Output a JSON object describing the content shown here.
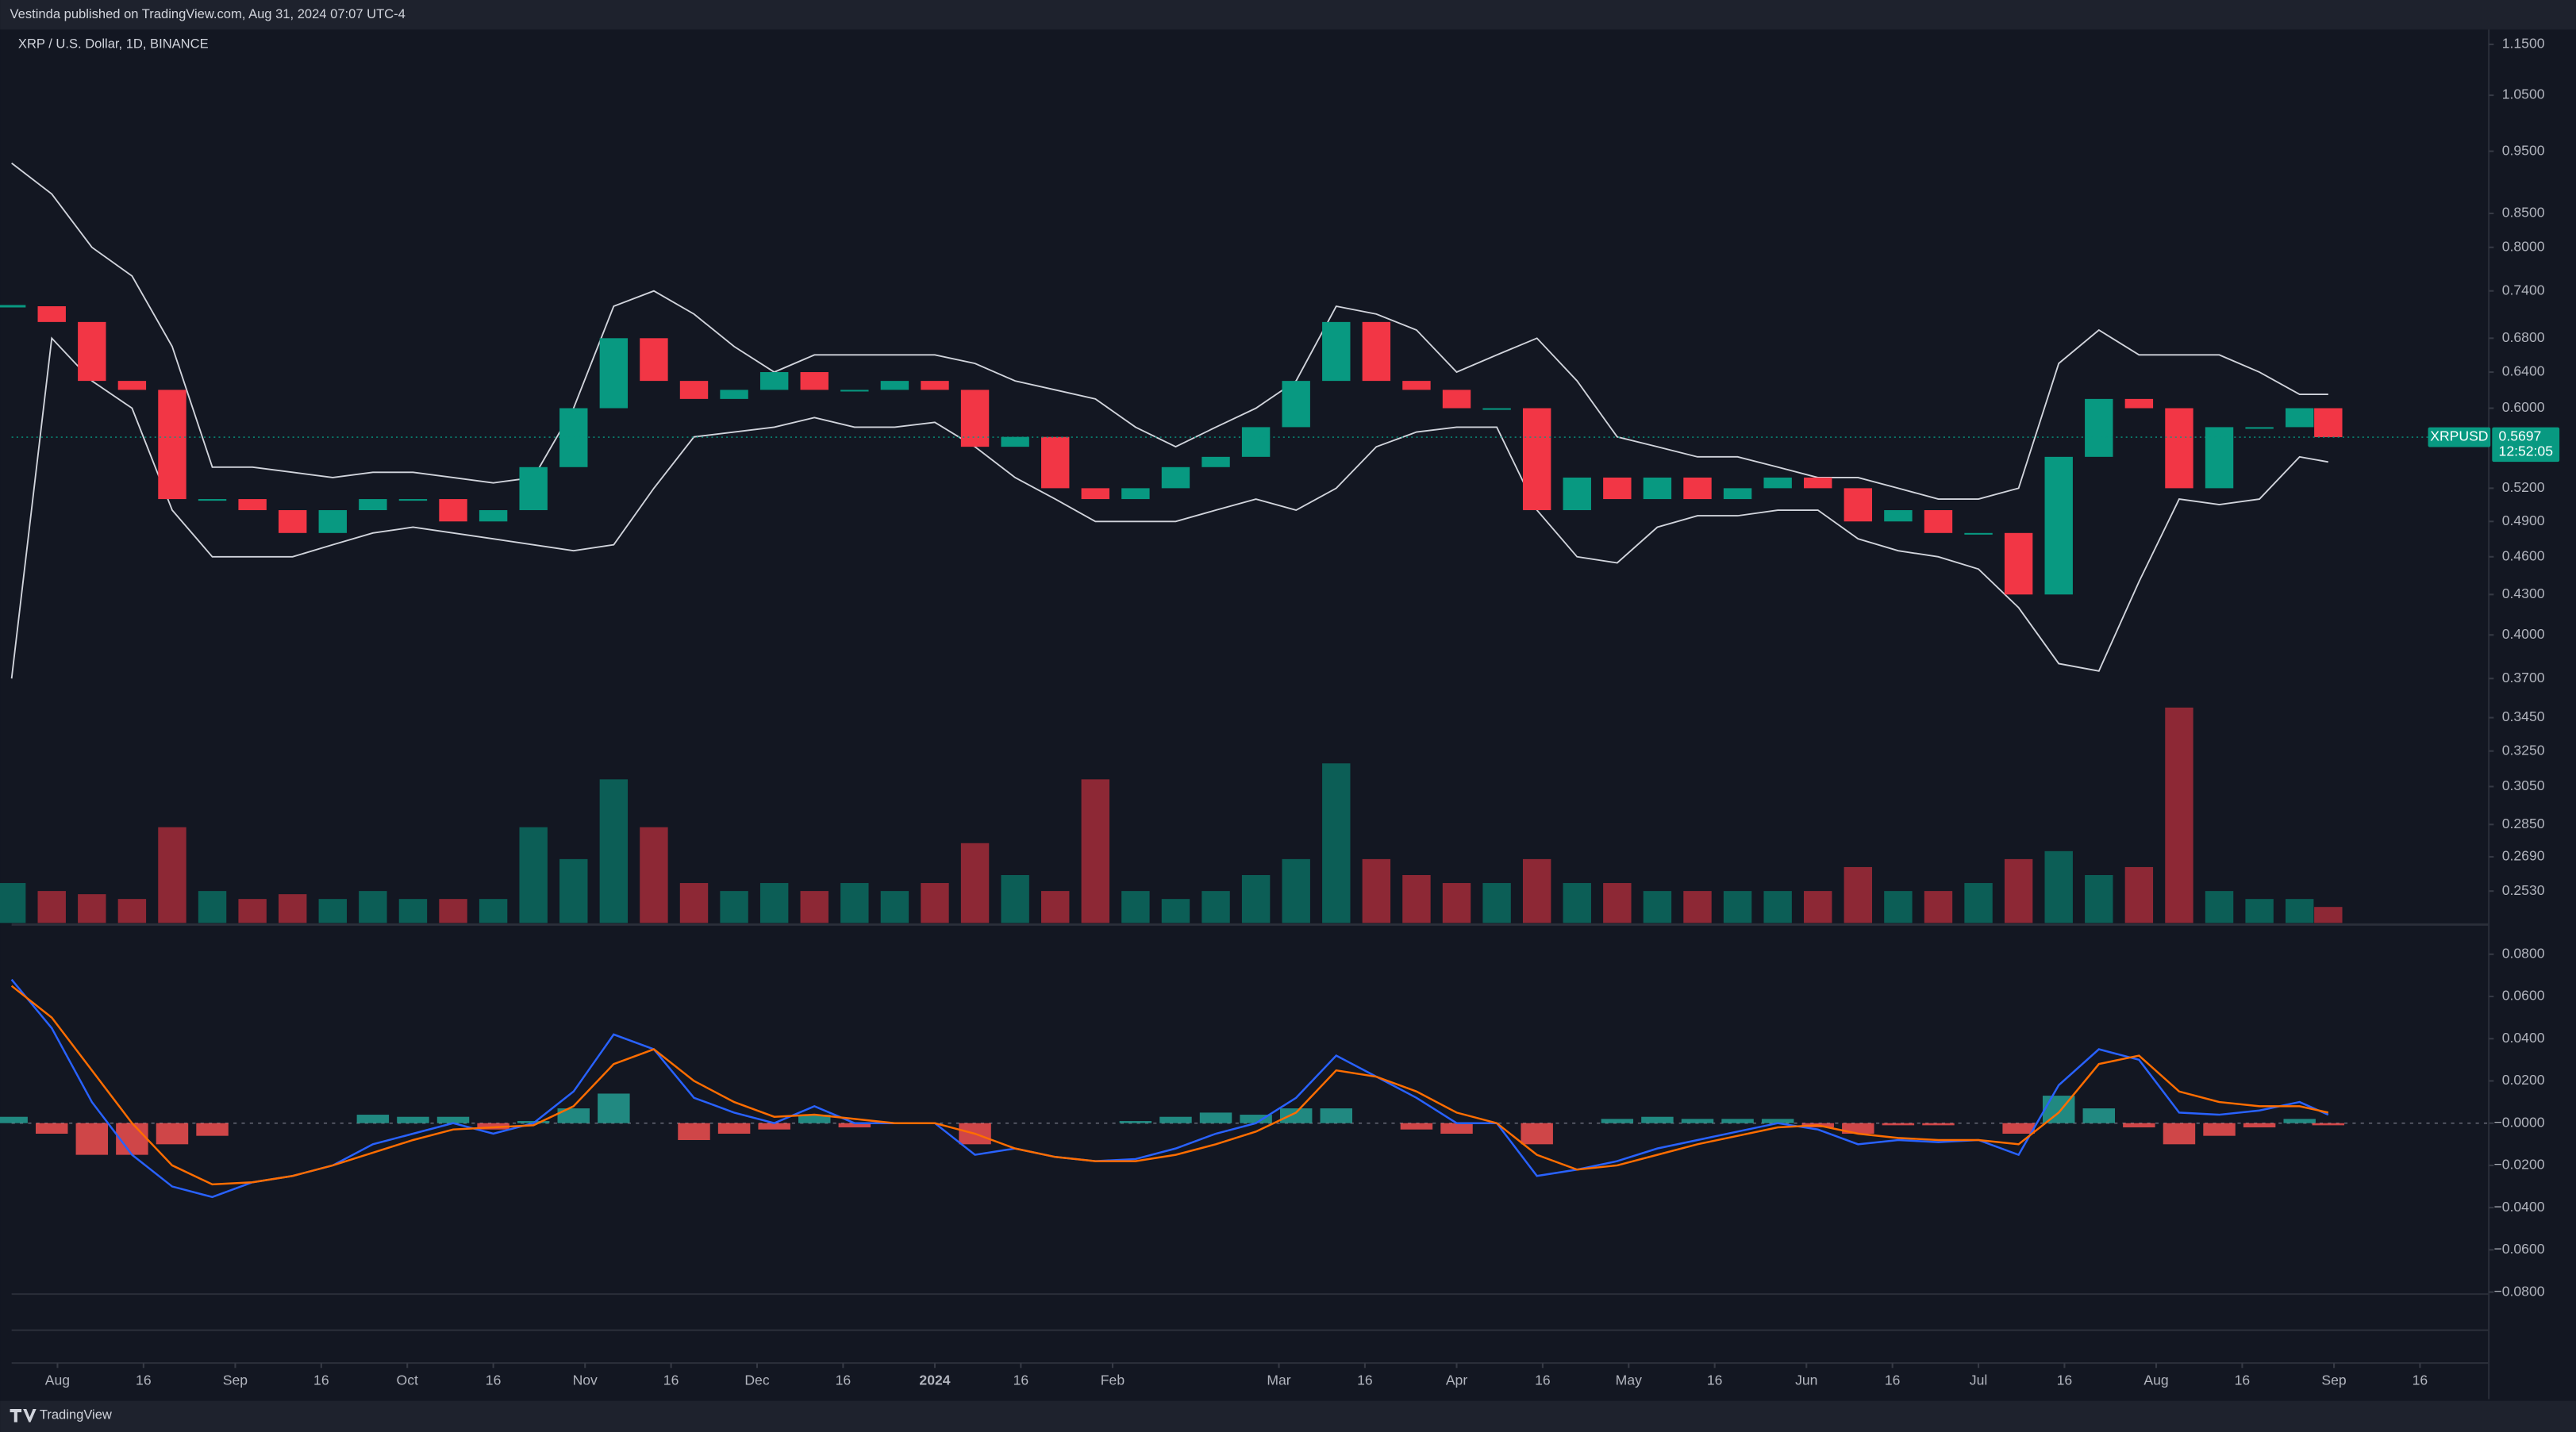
{
  "header": {
    "published": "Vestinda published on TradingView.com, Aug 31, 2024 07:07 UTC-4",
    "logo": "TradingView"
  },
  "price_tag": {
    "symbol": "XRPUSD",
    "value": 0.5697,
    "countdown": "12:52:05",
    "color": "#089981"
  },
  "chart_data": {
    "type": "candlestick",
    "title": "XRP / U.S. Dollar, 1D, BINANCE",
    "x": [
      0,
      7,
      14,
      21,
      28,
      35,
      42,
      49,
      56,
      63,
      70,
      77,
      84,
      91,
      98,
      105,
      112,
      119,
      126,
      133,
      140,
      147,
      154,
      161,
      168,
      175,
      182,
      189,
      196,
      203,
      210,
      217,
      224,
      231,
      238,
      245,
      252,
      259,
      266,
      273,
      280,
      287,
      294,
      301,
      308,
      315,
      322,
      329,
      336,
      343,
      350,
      357,
      364,
      371,
      378,
      385,
      392,
      399,
      404
    ],
    "xlim": [
      0,
      432
    ],
    "xticks": [
      {
        "value": 8,
        "label": "Aug"
      },
      {
        "value": 23,
        "label": "16"
      },
      {
        "value": 39,
        "label": "Sep"
      },
      {
        "value": 54,
        "label": "16"
      },
      {
        "value": 69,
        "label": "Oct"
      },
      {
        "value": 84,
        "label": "16"
      },
      {
        "value": 100,
        "label": "Nov"
      },
      {
        "value": 115,
        "label": "16"
      },
      {
        "value": 130,
        "label": "Dec"
      },
      {
        "value": 145,
        "label": "16"
      },
      {
        "value": 161,
        "label": "2024"
      },
      {
        "value": 176,
        "label": "16"
      },
      {
        "value": 192,
        "label": "Feb"
      },
      {
        "value": 221,
        "label": "Mar"
      },
      {
        "value": 236,
        "label": "16"
      },
      {
        "value": 252,
        "label": "Apr"
      },
      {
        "value": 267,
        "label": "16"
      },
      {
        "value": 282,
        "label": "May"
      },
      {
        "value": 297,
        "label": "16"
      },
      {
        "value": 313,
        "label": "Jun"
      },
      {
        "value": 328,
        "label": "16"
      },
      {
        "value": 343,
        "label": "Jul"
      },
      {
        "value": 358,
        "label": "16"
      },
      {
        "value": 374,
        "label": "Aug"
      },
      {
        "value": 389,
        "label": "16"
      },
      {
        "value": 405,
        "label": "Sep"
      },
      {
        "value": 420,
        "label": "16"
      }
    ],
    "close": [
      0.72,
      0.7,
      0.63,
      0.62,
      0.51,
      0.51,
      0.5,
      0.48,
      0.5,
      0.51,
      0.51,
      0.49,
      0.5,
      0.54,
      0.6,
      0.68,
      0.63,
      0.61,
      0.62,
      0.64,
      0.62,
      0.62,
      0.63,
      0.62,
      0.56,
      0.57,
      0.52,
      0.51,
      0.52,
      0.54,
      0.55,
      0.58,
      0.63,
      0.7,
      0.63,
      0.62,
      0.6,
      0.6,
      0.5,
      0.53,
      0.51,
      0.53,
      0.51,
      0.52,
      0.53,
      0.52,
      0.49,
      0.5,
      0.48,
      0.48,
      0.43,
      0.55,
      0.61,
      0.6,
      0.52,
      0.58,
      0.58,
      0.6,
      0.5697
    ],
    "up_color": "#089981",
    "down_color": "#f23645",
    "series": [
      {
        "color": "#d1d4dc",
        "values": [
          0.93,
          0.88,
          0.8,
          0.76,
          0.67,
          0.54,
          0.54,
          0.535,
          0.53,
          0.535,
          0.535,
          0.53,
          0.525,
          0.53,
          0.6,
          0.72,
          0.74,
          0.71,
          0.67,
          0.64,
          0.66,
          0.66,
          0.66,
          0.66,
          0.65,
          0.63,
          0.62,
          0.61,
          0.58,
          0.56,
          0.58,
          0.6,
          0.63,
          0.72,
          0.71,
          0.69,
          0.64,
          0.66,
          0.68,
          0.63,
          0.57,
          0.56,
          0.55,
          0.55,
          0.54,
          0.53,
          0.53,
          0.52,
          0.51,
          0.51,
          0.52,
          0.65,
          0.69,
          0.66,
          0.66,
          0.66,
          0.64,
          0.615,
          0.615
        ]
      },
      {
        "color": "#d1d4dc",
        "values": [
          0.37,
          0.68,
          0.63,
          0.6,
          0.5,
          0.46,
          0.46,
          0.46,
          0.47,
          0.48,
          0.485,
          0.48,
          0.475,
          0.47,
          0.465,
          0.47,
          0.52,
          0.57,
          0.575,
          0.58,
          0.59,
          0.58,
          0.58,
          0.585,
          0.56,
          0.53,
          0.51,
          0.49,
          0.49,
          0.49,
          0.5,
          0.51,
          0.5,
          0.52,
          0.56,
          0.575,
          0.58,
          0.58,
          0.5,
          0.46,
          0.455,
          0.485,
          0.495,
          0.495,
          0.5,
          0.5,
          0.475,
          0.465,
          0.46,
          0.45,
          0.42,
          0.38,
          0.375,
          0.44,
          0.51,
          0.505,
          0.51,
          0.55,
          0.545
        ]
      }
    ],
    "log_scale": true,
    "grid": false,
    "ylim": [
      0.239,
      1.245
    ],
    "yticks": [
      {
        "value": 1.15,
        "label": "1.1500"
      },
      {
        "value": 1.05,
        "label": "1.0500"
      },
      {
        "value": 0.95,
        "label": "0.9500"
      },
      {
        "value": 0.85,
        "label": "0.8500"
      },
      {
        "value": 0.8,
        "label": "0.8000"
      },
      {
        "value": 0.74,
        "label": "0.7400"
      },
      {
        "value": 0.68,
        "label": "0.6800"
      },
      {
        "value": 0.64,
        "label": "0.6400"
      },
      {
        "value": 0.6,
        "label": "0.6000"
      },
      {
        "value": 0.52,
        "label": "0.5200"
      },
      {
        "value": 0.49,
        "label": "0.4900"
      },
      {
        "value": 0.46,
        "label": "0.4600"
      },
      {
        "value": 0.43,
        "label": "0.4300"
      },
      {
        "value": 0.4,
        "label": "0.4000"
      },
      {
        "value": 0.37,
        "label": "0.3700"
      },
      {
        "value": 0.345,
        "label": "0.3450"
      },
      {
        "value": 0.325,
        "label": "0.3250"
      },
      {
        "value": 0.305,
        "label": "0.3050"
      },
      {
        "value": 0.285,
        "label": "0.2850"
      },
      {
        "value": 0.269,
        "label": "0.2690"
      },
      {
        "value": 0.253,
        "label": "0.2530"
      }
    ],
    "volume": {
      "values": [
        25,
        20,
        18,
        15,
        60,
        20,
        15,
        18,
        15,
        20,
        15,
        15,
        15,
        60,
        40,
        90,
        60,
        25,
        20,
        25,
        20,
        25,
        20,
        25,
        50,
        30,
        20,
        90,
        20,
        15,
        20,
        30,
        40,
        100,
        40,
        30,
        25,
        25,
        40,
        25,
        25,
        20,
        20,
        20,
        20,
        20,
        35,
        20,
        20,
        25,
        40,
        45,
        30,
        35,
        135,
        20,
        15,
        15,
        10
      ],
      "vlim": [
        0,
        140
      ]
    },
    "macd": {
      "series": [
        {
          "color": "#2962ff",
          "values": [
            0.068,
            0.045,
            0.01,
            -0.015,
            -0.03,
            -0.035,
            -0.028,
            -0.025,
            -0.02,
            -0.01,
            -0.005,
            0,
            -0.005,
            0,
            0.015,
            0.042,
            0.035,
            0.012,
            0.005,
            0,
            0.008,
            0,
            0,
            0,
            -0.015,
            -0.012,
            -0.016,
            -0.018,
            -0.017,
            -0.012,
            -0.005,
            0,
            0.012,
            0.032,
            0.022,
            0.012,
            0,
            0,
            -0.025,
            -0.022,
            -0.018,
            -0.012,
            -0.008,
            -0.004,
            0,
            -0.003,
            -0.01,
            -0.008,
            -0.009,
            -0.008,
            -0.015,
            0.018,
            0.035,
            0.03,
            0.005,
            0.004,
            0.006,
            0.01,
            0.004
          ]
        },
        {
          "color": "#ff6d00",
          "values": [
            0.065,
            0.05,
            0.025,
            0,
            -0.02,
            -0.029,
            -0.028,
            -0.025,
            -0.02,
            -0.014,
            -0.008,
            -0.003,
            -0.002,
            -0.001,
            0.008,
            0.028,
            0.035,
            0.02,
            0.01,
            0.003,
            0.004,
            0.002,
            0,
            0,
            -0.005,
            -0.012,
            -0.016,
            -0.018,
            -0.018,
            -0.015,
            -0.01,
            -0.004,
            0.005,
            0.025,
            0.022,
            0.015,
            0.005,
            0,
            -0.015,
            -0.022,
            -0.02,
            -0.015,
            -0.01,
            -0.006,
            -0.002,
            -0.001,
            -0.005,
            -0.007,
            -0.008,
            -0.008,
            -0.01,
            0.005,
            0.028,
            0.032,
            0.015,
            0.01,
            0.008,
            0.008,
            0.005
          ]
        }
      ],
      "histogram": {
        "pos_color": "#26a69a",
        "neg_color": "#ff5252",
        "values": [
          0.003,
          -0.005,
          -0.015,
          -0.015,
          -0.01,
          -0.006,
          0,
          0,
          0,
          0.004,
          0.003,
          0.003,
          -0.003,
          0.001,
          0.007,
          0.014,
          0,
          -0.008,
          -0.005,
          -0.003,
          0.004,
          -0.002,
          0,
          0,
          -0.01,
          0,
          0,
          0,
          0.001,
          0.003,
          0.005,
          0.004,
          0.007,
          0.007,
          0,
          -0.003,
          -0.005,
          0,
          -0.01,
          0,
          0.002,
          0.003,
          0.002,
          0.002,
          0.002,
          -0.002,
          -0.005,
          -0.001,
          -0.001,
          0,
          -0.005,
          0.013,
          0.007,
          -0.002,
          -0.01,
          -0.006,
          -0.002,
          0.002,
          -0.001
        ]
      },
      "ylim": [
        -0.0825,
        0.0925
      ],
      "yticks": [
        {
          "value": 0.08,
          "label": "0.0800"
        },
        {
          "value": 0.06,
          "label": "0.0600"
        },
        {
          "value": 0.04,
          "label": "0.0400"
        },
        {
          "value": 0.02,
          "label": "0.0200"
        },
        {
          "value": 0,
          "label": "−0.0000"
        },
        {
          "value": -0.02,
          "label": "−0.0200"
        },
        {
          "value": -0.04,
          "label": "−0.0400"
        },
        {
          "value": -0.06,
          "label": "−0.0600"
        },
        {
          "value": -0.08,
          "label": "−0.0800"
        }
      ]
    }
  }
}
